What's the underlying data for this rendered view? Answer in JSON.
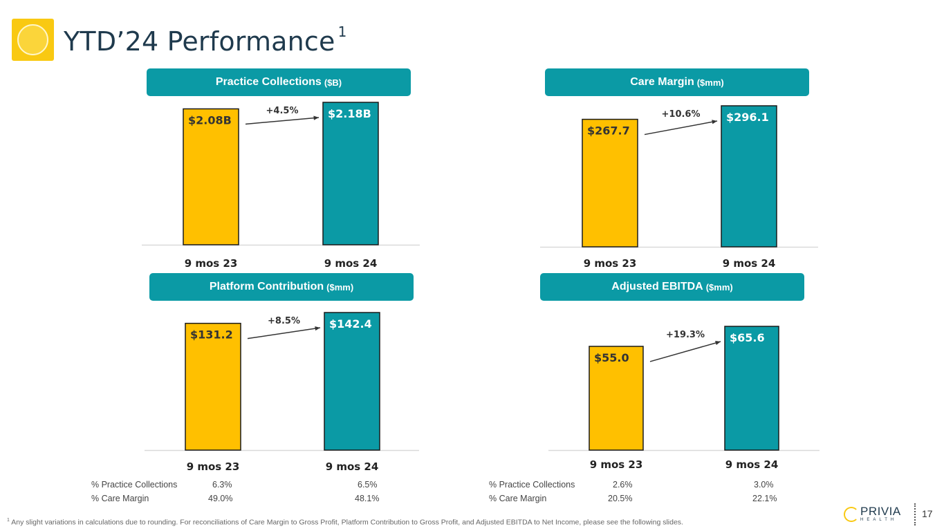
{
  "header": {
    "title": "YTD’24 Performance",
    "title_sup": "1"
  },
  "colors": {
    "yellow": "#ffc000",
    "teal": "#0b9aa5",
    "header_bg": "#0b9aa5"
  },
  "panels": [
    {
      "title": "Practice Collections",
      "unit": "($B)"
    },
    {
      "title": "Care Margin",
      "unit": "($mm)"
    },
    {
      "title": "Platform Contribution",
      "unit": "($mm)"
    },
    {
      "title": "Adjusted EBITDA",
      "unit": "($mm)"
    }
  ],
  "chart_data": [
    {
      "type": "bar",
      "title": "Practice Collections ($B)",
      "categories": [
        "9 mos 23",
        "9 mos 24"
      ],
      "values": [
        2.08,
        2.18
      ],
      "value_labels": [
        "$2.08B",
        "$2.18B"
      ],
      "change_label": "+4.5%"
    },
    {
      "type": "bar",
      "title": "Care Margin ($mm)",
      "categories": [
        "9 mos 23",
        "9 mos 24"
      ],
      "values": [
        267.7,
        296.1
      ],
      "value_labels": [
        "$267.7",
        "$296.1"
      ],
      "change_label": "+10.6%"
    },
    {
      "type": "bar",
      "title": "Platform Contribution ($mm)",
      "categories": [
        "9 mos 23",
        "9 mos 24"
      ],
      "values": [
        131.2,
        142.4
      ],
      "value_labels": [
        "$131.2",
        "$142.4"
      ],
      "change_label": "+8.5%"
    },
    {
      "type": "bar",
      "title": "Adjusted EBITDA ($mm)",
      "categories": [
        "9 mos 23",
        "9 mos 24"
      ],
      "values": [
        55.0,
        65.6
      ],
      "value_labels": [
        "$55.0",
        "$65.6"
      ],
      "change_label": "+19.3%"
    }
  ],
  "metrics": {
    "platform": [
      {
        "label": "% Practice Collections",
        "v23": "6.3%",
        "v24": "6.5%"
      },
      {
        "label": "% Care Margin",
        "v23": "49.0%",
        "v24": "48.1%"
      }
    ],
    "ebitda": [
      {
        "label": "% Practice Collections",
        "v23": "2.6%",
        "v24": "3.0%"
      },
      {
        "label": "% Care Margin",
        "v23": "20.5%",
        "v24": "22.1%"
      }
    ]
  },
  "footnote": {
    "marker": "1",
    "text": "Any slight variations in calculations due to rounding.  For reconciliations of Care Margin to Gross Profit, Platform Contribution to Gross Profit, and Adjusted EBITDA to Net Income, please see the following slides."
  },
  "brand": {
    "name": "PRIVIA",
    "sub": "HEALTH"
  },
  "page_number": "17"
}
